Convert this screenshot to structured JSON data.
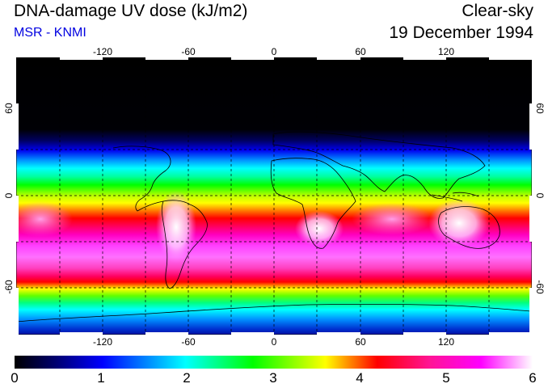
{
  "title": "DNA-damage UV dose (kJ/m2)",
  "subtitle": "MSR - KNMI",
  "sky_condition": "Clear-sky",
  "date": "19 December 1994",
  "longitude_ticks": [
    "-120",
    "-60",
    "0",
    "60",
    "120"
  ],
  "latitude_ticks_left": [
    "60",
    "0",
    "-60"
  ],
  "latitude_ticks_right": [
    "60",
    "0",
    "-60"
  ],
  "colorbar": {
    "min": 0,
    "max": 6,
    "labels": [
      "0",
      "1",
      "2",
      "3",
      "4",
      "5",
      "6"
    ],
    "colors": [
      "#000000",
      "#000070",
      "#0000ff",
      "#00ffff",
      "#00ff00",
      "#ffff00",
      "#ff0000",
      "#ff1493",
      "#ff00ff",
      "#ffffff"
    ]
  }
}
